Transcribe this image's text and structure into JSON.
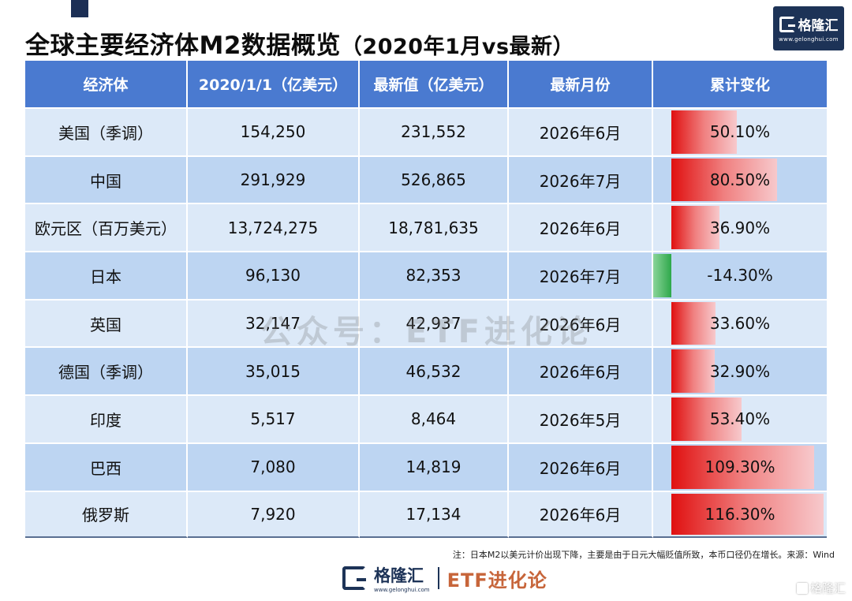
{
  "title": {
    "main": "全球主要经济体M2数据概览",
    "sub": "（2020年1月vs最新）"
  },
  "logo": {
    "brand": "格隆汇",
    "url": "www.gelonghui.com"
  },
  "chart_data": {
    "type": "table",
    "columns": [
      "经济体",
      "2020/1/1（亿美元）",
      "最新值（亿美元）",
      "最新月份",
      "累计变化"
    ],
    "rows": [
      {
        "economy": "美国（季调）",
        "base": "154,250",
        "latest": "231,552",
        "month": "2026年6月",
        "change_text": "50.10%",
        "change": 50.1
      },
      {
        "economy": "中国",
        "base": "291,929",
        "latest": "526,865",
        "month": "2026年7月",
        "change_text": "80.50%",
        "change": 80.5
      },
      {
        "economy": "欧元区（百万美元）",
        "base": "13,724,275",
        "latest": "18,781,635",
        "month": "2026年6月",
        "change_text": "36.90%",
        "change": 36.9
      },
      {
        "economy": "日本",
        "base": "96,130",
        "latest": "82,353",
        "month": "2026年7月",
        "change_text": "-14.30%",
        "change": -14.3
      },
      {
        "economy": "英国",
        "base": "32,147",
        "latest": "42,937",
        "month": "2026年6月",
        "change_text": "33.60%",
        "change": 33.6
      },
      {
        "economy": "德国（季调）",
        "base": "35,015",
        "latest": "46,532",
        "month": "2026年6月",
        "change_text": "32.90%",
        "change": 32.9
      },
      {
        "economy": "印度",
        "base": "5,517",
        "latest": "8,464",
        "month": "2026年5月",
        "change_text": "53.40%",
        "change": 53.4
      },
      {
        "economy": "巴西",
        "base": "7,080",
        "latest": "14,819",
        "month": "2026年6月",
        "change_text": "109.30%",
        "change": 109.3
      },
      {
        "economy": "俄罗斯",
        "base": "7,920",
        "latest": "17,134",
        "month": "2026年6月",
        "change_text": "116.30%",
        "change": 116.3
      }
    ],
    "bar_range": [
      -14.3,
      116.3
    ],
    "colors": {
      "positive": "#e01010",
      "negative": "#2ea84a",
      "header": "#4a7ad0",
      "row_light": "#dce9f8",
      "row_dark": "#bdd5f2"
    }
  },
  "watermark": "公众号：ETF进化论",
  "footnote": "注：日本M2以美元计价出现下降，主要是由于日元大幅贬值所致，本币口径仍在增长。来源：Wind",
  "bottom_logo": {
    "brand": "格隆汇",
    "url": "www.gelonghui.com",
    "channel": "ETF进化论"
  },
  "corner_watermark": "格隆汇"
}
